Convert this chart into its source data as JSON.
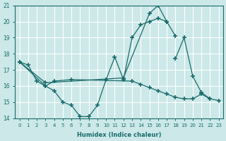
{
  "background_color": "#cce8e8",
  "grid_color": "#ffffff",
  "line_color": "#1a6b6b",
  "xlabel": "Humidex (Indice chaleur)",
  "xlim": [
    -0.5,
    23.5
  ],
  "ylim": [
    14,
    21
  ],
  "yticks": [
    14,
    15,
    16,
    17,
    18,
    19,
    20,
    21
  ],
  "xticks": [
    0,
    1,
    2,
    3,
    4,
    5,
    6,
    7,
    8,
    9,
    10,
    11,
    12,
    13,
    14,
    15,
    16,
    17,
    18,
    19,
    20,
    21,
    22,
    23
  ],
  "series": [
    {
      "x": [
        0,
        1,
        2,
        3,
        4,
        5,
        6,
        7,
        8,
        9,
        10,
        11,
        12,
        13,
        14,
        15,
        16,
        17,
        18
      ],
      "y": [
        17.5,
        17.3,
        16.3,
        16.0,
        15.7,
        15.0,
        14.8,
        14.1,
        14.1,
        14.8,
        16.4,
        17.8,
        16.4,
        19.0,
        19.8,
        20.0,
        20.2,
        20.0,
        19.1
      ]
    },
    {
      "x": [
        0,
        3,
        12,
        15,
        16,
        17
      ],
      "y": [
        17.5,
        16.2,
        16.5,
        20.5,
        21.0,
        20.0
      ]
    },
    {
      "x": [
        0,
        3,
        4,
        6,
        13,
        14,
        15,
        16,
        17,
        18,
        19,
        20,
        21,
        22,
        23
      ],
      "y": [
        17.5,
        16.0,
        16.3,
        16.4,
        16.3,
        16.1,
        15.9,
        15.7,
        15.5,
        15.3,
        15.2,
        15.2,
        15.5,
        15.2,
        15.1
      ]
    },
    {
      "x": [
        18,
        19,
        20,
        21,
        22
      ],
      "y": [
        17.7,
        19.0,
        16.6,
        15.6,
        15.2
      ]
    }
  ]
}
